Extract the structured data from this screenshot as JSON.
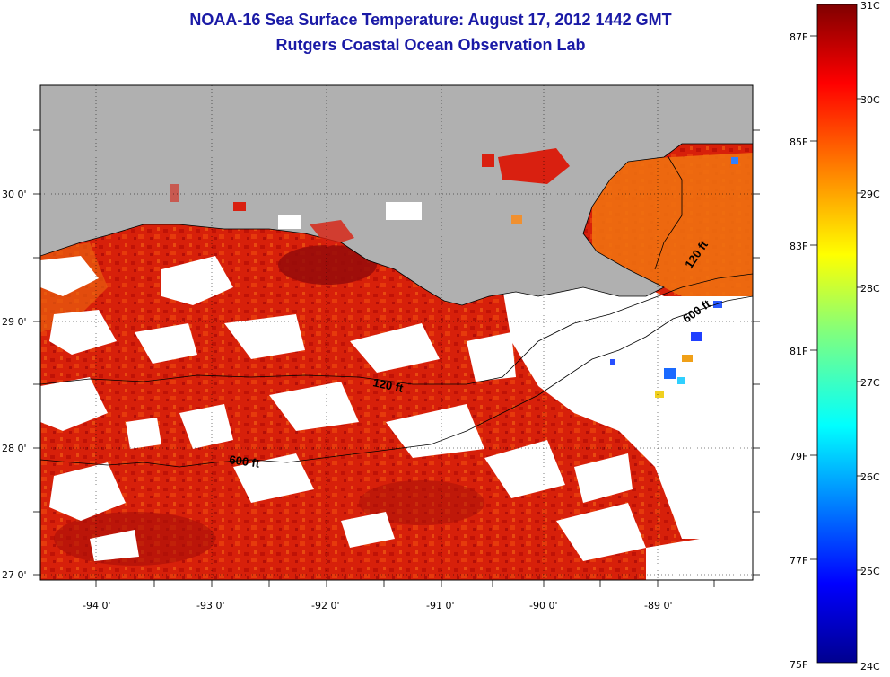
{
  "header": {
    "title": "NOAA-16 Sea Surface Temperature:  August 17, 2012 1442 GMT",
    "subtitle": "Rutgers Coastal Ocean Observation Lab"
  },
  "map": {
    "lat_labels": [
      "30 0'",
      "29 0'",
      "28 0'",
      "27 0'"
    ],
    "lon_labels": [
      "-94 0'",
      "-93 0'",
      "-92 0'",
      "-91 0'",
      "-90 0'",
      "-89 0'"
    ],
    "contours": [
      {
        "label": "120 ft"
      },
      {
        "label": "600 ft"
      },
      {
        "label": "120 ft"
      },
      {
        "label": "600 ft"
      }
    ]
  },
  "colorbar": {
    "celsius_labels": [
      "31C",
      "30C",
      "29C",
      "28C",
      "27C",
      "26C",
      "25C",
      "24C"
    ],
    "fahrenheit_labels": [
      "87F",
      "85F",
      "83F",
      "81F",
      "79F",
      "77F",
      "75F"
    ]
  },
  "colors": {
    "title": "#1a1aa6",
    "land": "#b0b0b0",
    "warm": "#d41a00",
    "hot": "#9e0e08",
    "clouds": "#ffffff"
  }
}
